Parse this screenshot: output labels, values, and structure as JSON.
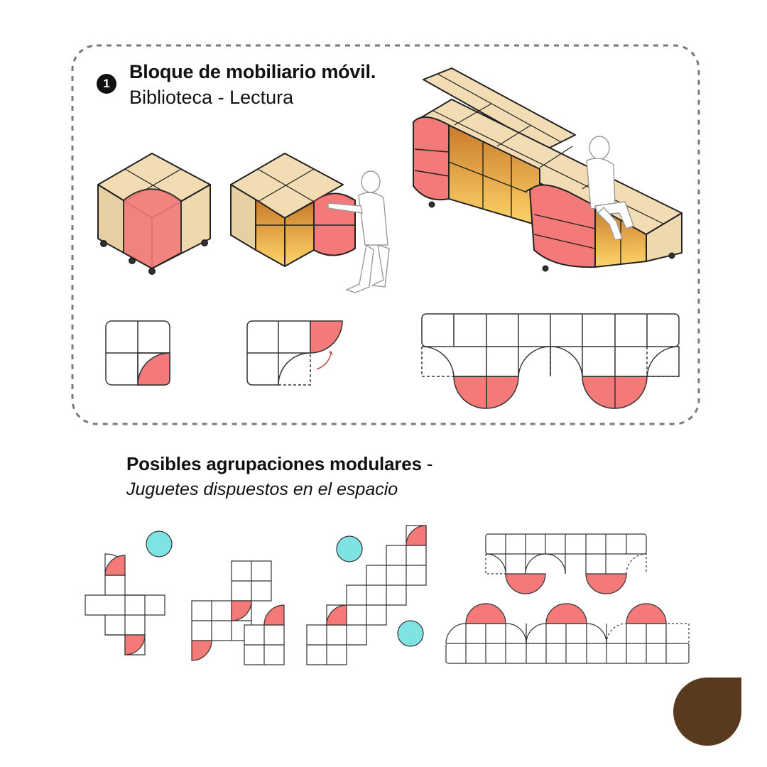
{
  "section1": {
    "number": "1",
    "title": "Bloque de mobiliario móvil.",
    "subtitle": "Biblioteca - Lectura"
  },
  "section2": {
    "title": "Posibles agrupaciones modulares",
    "separator": "-",
    "subtitle": "Juguetes dispuestos en el espacio"
  },
  "colors": {
    "accent_red": "#f37a78",
    "accent_cyan": "#7fe3e3",
    "wood": "#f1dcb4",
    "brand_brown": "#5a3a1e",
    "dashed_border": "#7a7a7a",
    "line": "#333333"
  },
  "icons": [
    "brand-drop-icon"
  ]
}
